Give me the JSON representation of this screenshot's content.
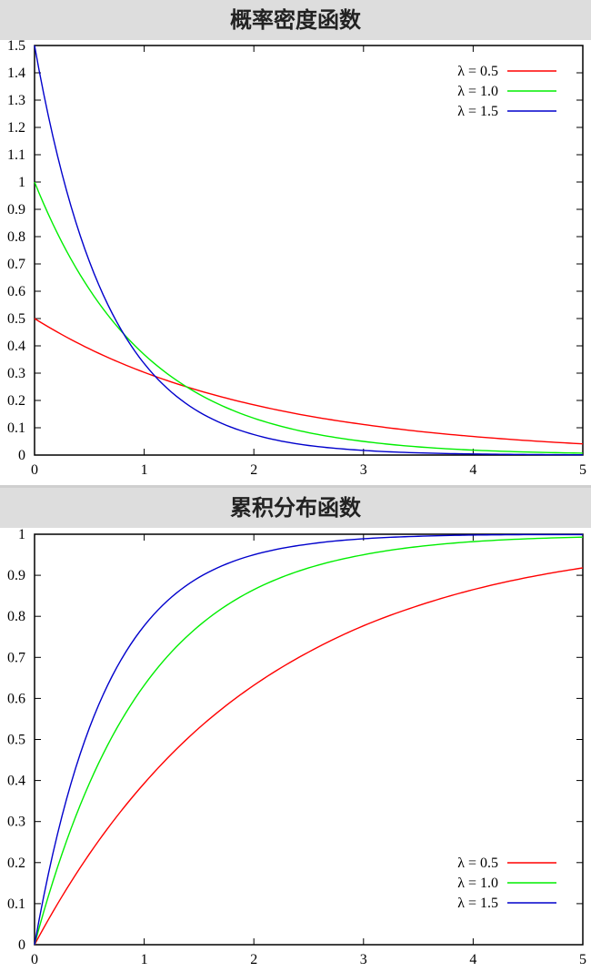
{
  "chart_data": [
    {
      "type": "line",
      "title": "概率密度函数",
      "xlabel": "",
      "ylabel": "",
      "xlim": [
        0,
        5
      ],
      "ylim": [
        0,
        1.5
      ],
      "x_ticks": [
        "0",
        "1",
        "2",
        "3",
        "4",
        "5"
      ],
      "y_ticks": [
        "0",
        "0.1",
        "0.2",
        "0.3",
        "0.4",
        "0.5",
        "0.6",
        "0.7",
        "0.8",
        "0.9",
        "1",
        "1.1",
        "1.2",
        "1.3",
        "1.4",
        "1.5"
      ],
      "x": [
        0,
        0.5,
        1,
        1.5,
        2,
        2.5,
        3,
        3.5,
        4,
        4.5,
        5
      ],
      "grid": false,
      "legend_position": "top-right",
      "series": [
        {
          "name": "λ = 0.5",
          "color": "#ff0000",
          "values": [
            0.5,
            0.389,
            0.303,
            0.236,
            0.184,
            0.143,
            0.112,
            0.087,
            0.068,
            0.053,
            0.041
          ]
        },
        {
          "name": "λ = 1.0",
          "color": "#00ee00",
          "values": [
            1.0,
            0.607,
            0.368,
            0.223,
            0.135,
            0.082,
            0.05,
            0.03,
            0.018,
            0.011,
            0.007
          ]
        },
        {
          "name": "λ = 1.5",
          "color": "#0000cc",
          "values": [
            1.5,
            0.709,
            0.335,
            0.158,
            0.075,
            0.035,
            0.017,
            0.008,
            0.004,
            0.002,
            0.001
          ]
        }
      ]
    },
    {
      "type": "line",
      "title": "累积分布函数",
      "xlabel": "",
      "ylabel": "",
      "xlim": [
        0,
        5
      ],
      "ylim": [
        0,
        1
      ],
      "x_ticks": [
        "0",
        "1",
        "2",
        "3",
        "4",
        "5"
      ],
      "y_ticks": [
        "0",
        "0.1",
        "0.2",
        "0.3",
        "0.4",
        "0.5",
        "0.6",
        "0.7",
        "0.8",
        "0.9",
        "1"
      ],
      "x": [
        0,
        0.5,
        1,
        1.5,
        2,
        2.5,
        3,
        3.5,
        4,
        4.5,
        5
      ],
      "grid": false,
      "legend_position": "bottom-right",
      "series": [
        {
          "name": "λ = 0.5",
          "color": "#ff0000",
          "values": [
            0,
            0.221,
            0.393,
            0.528,
            0.632,
            0.713,
            0.777,
            0.826,
            0.865,
            0.895,
            0.918
          ]
        },
        {
          "name": "λ = 1.0",
          "color": "#00ee00",
          "values": [
            0,
            0.393,
            0.632,
            0.777,
            0.865,
            0.918,
            0.95,
            0.97,
            0.982,
            0.989,
            0.993
          ]
        },
        {
          "name": "λ = 1.5",
          "color": "#0000cc",
          "values": [
            0,
            0.528,
            0.777,
            0.895,
            0.95,
            0.976,
            0.989,
            0.995,
            0.998,
            0.999,
            0.999
          ]
        }
      ]
    }
  ]
}
